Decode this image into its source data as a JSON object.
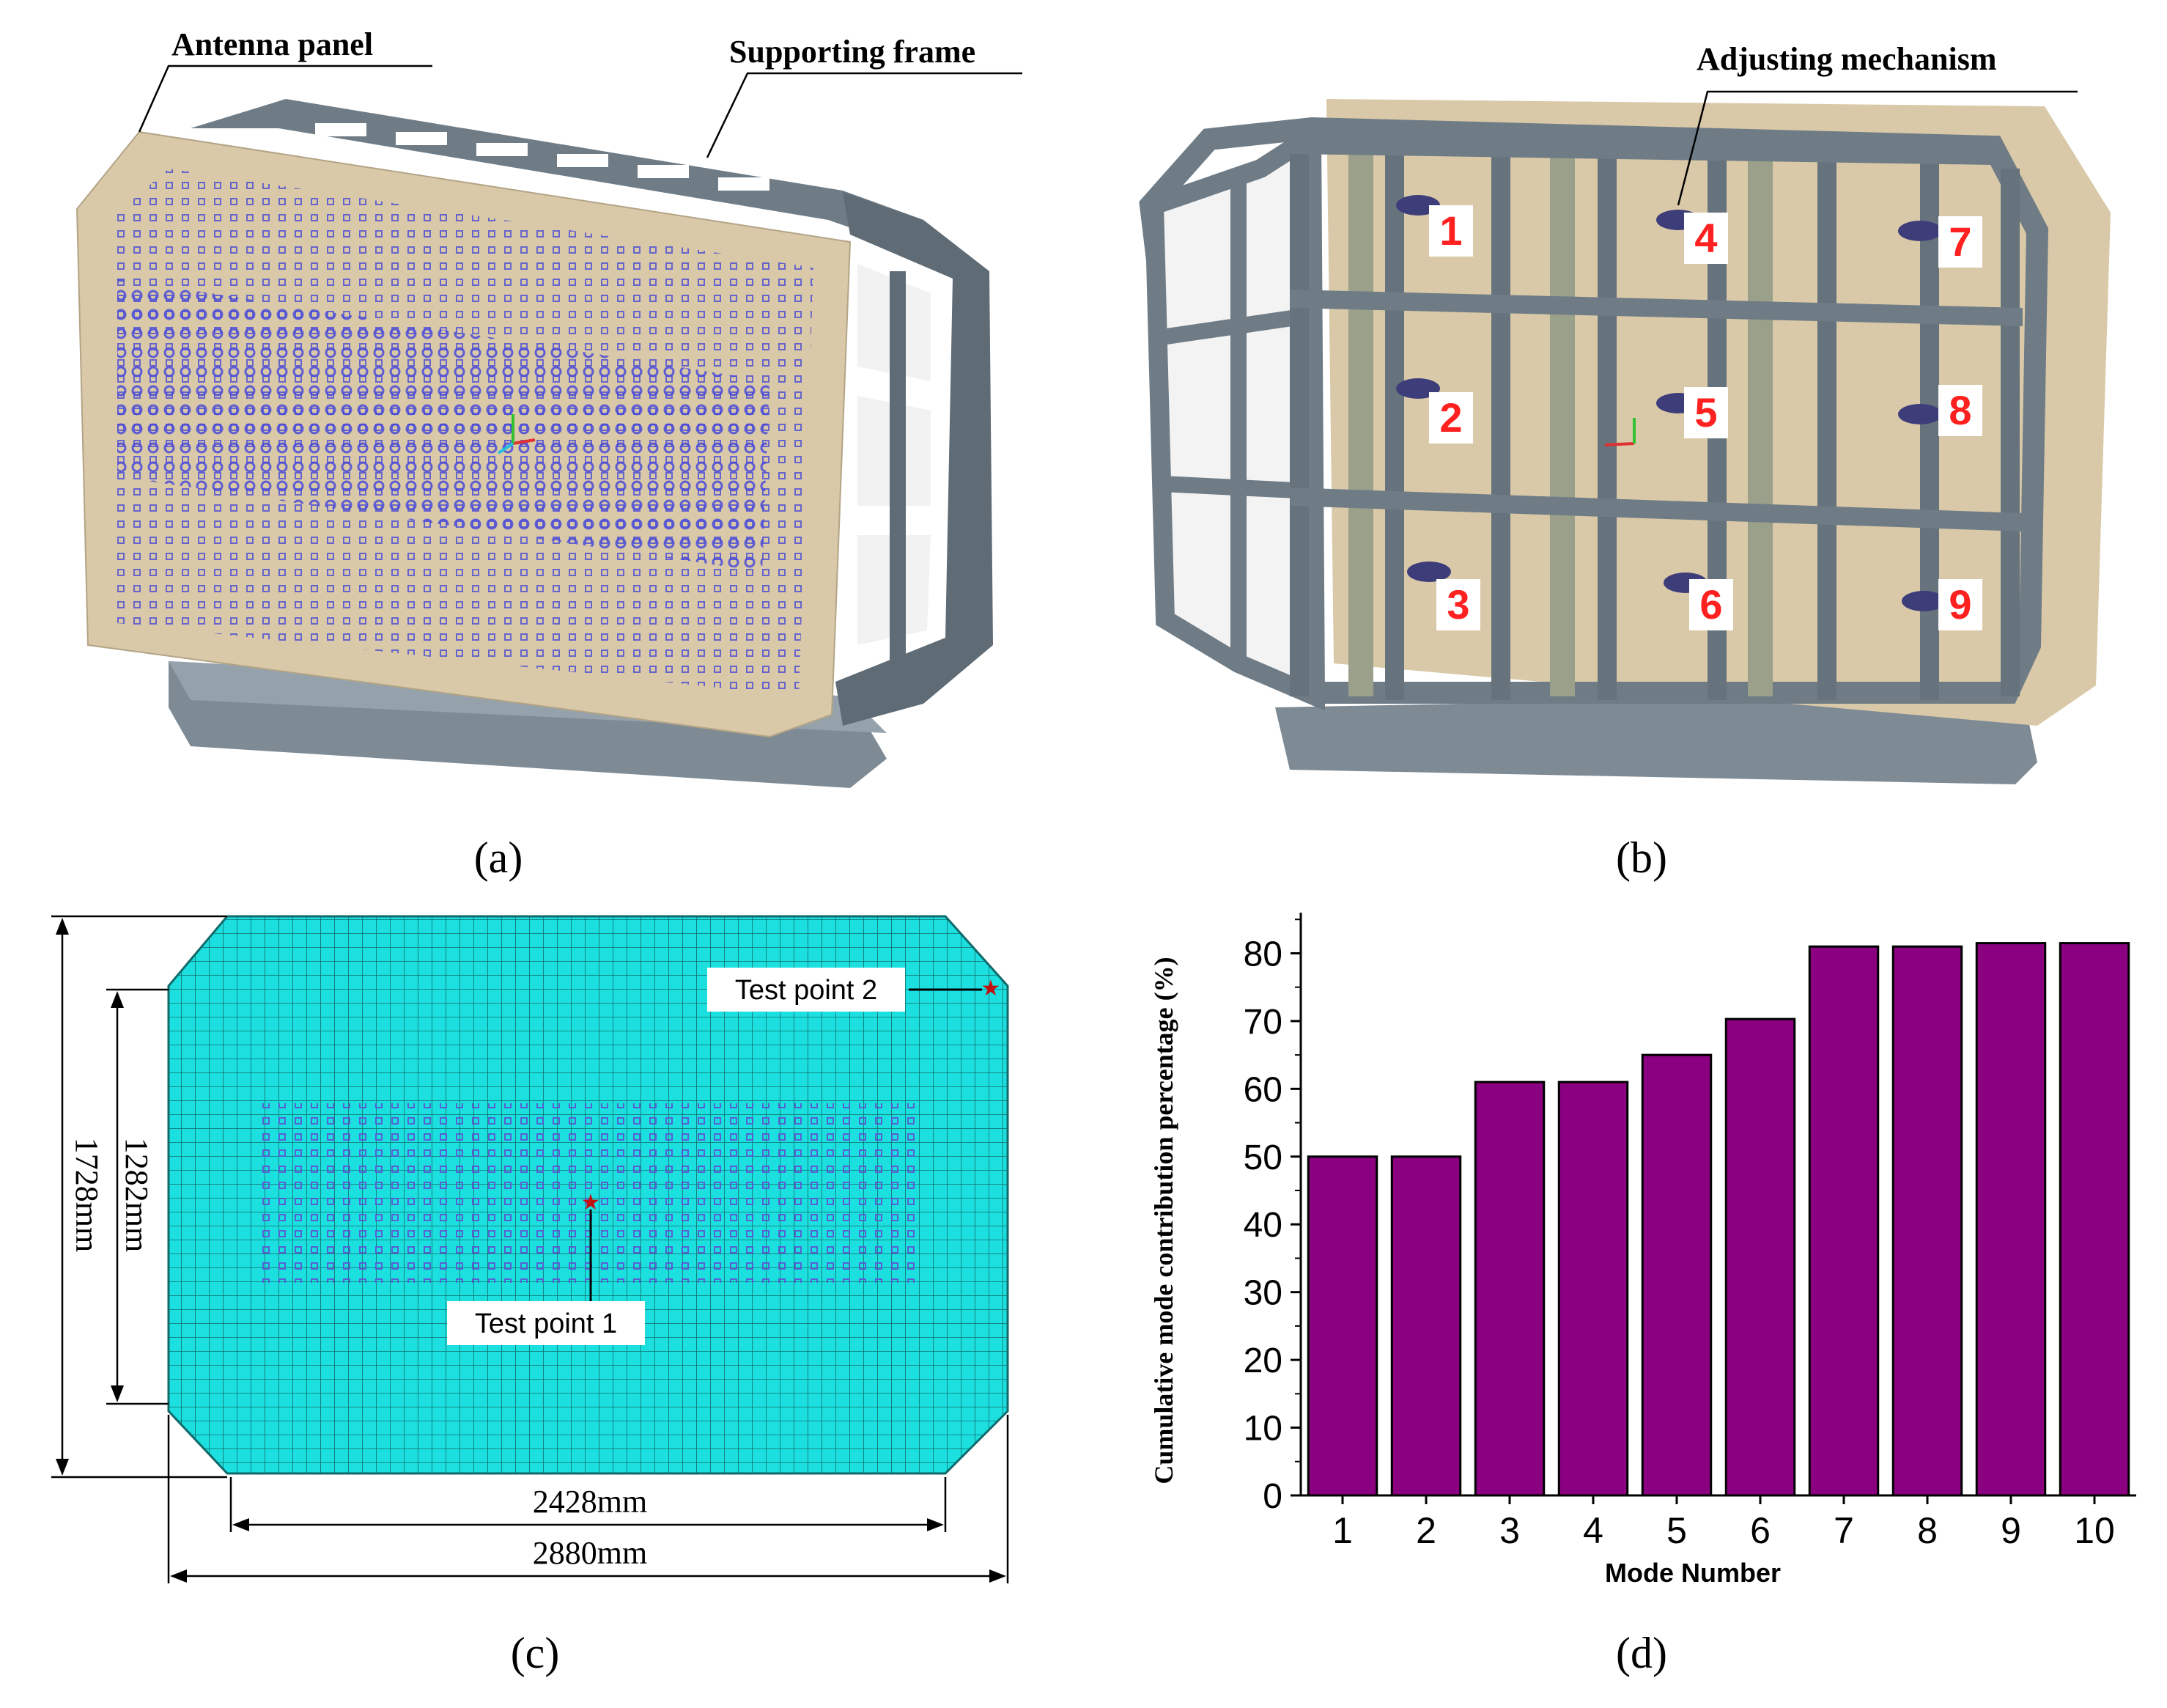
{
  "panel_a": {
    "label": "(a)",
    "callouts": {
      "antenna_panel": "Antenna panel",
      "supporting_frame": "Supporting frame"
    }
  },
  "panel_b": {
    "label": "(b)",
    "callouts": {
      "adjusting_mechanism": "Adjusting mechanism"
    },
    "mechanism_numbers": [
      "1",
      "2",
      "3",
      "4",
      "5",
      "6",
      "7",
      "8",
      "9"
    ]
  },
  "panel_c": {
    "label": "(c)",
    "dimensions": {
      "outer_height": "1728mm",
      "inner_height": "1282mm",
      "inner_width": "2428mm",
      "outer_width": "2880mm"
    },
    "test_points": {
      "point1": "Test point 1",
      "point2": "Test point 2"
    }
  },
  "panel_d": {
    "label": "(d)"
  },
  "colors": {
    "panel_tan": "#d9c9a8",
    "frame_gray": "#6f7c86",
    "mesh_cyan": "#1ce0e0",
    "bar_purple": "#8b0080",
    "number_red": "#ff2020"
  },
  "chart_data": {
    "type": "bar",
    "categories": [
      "1",
      "2",
      "3",
      "4",
      "5",
      "6",
      "7",
      "8",
      "9",
      "10"
    ],
    "values": [
      50.0,
      50.0,
      61.0,
      61.0,
      65.0,
      70.3,
      81.0,
      81.0,
      81.5,
      81.5
    ],
    "xlabel": "Mode Number",
    "ylabel": "Cumulative mode contribution percentage (%)",
    "ylim": [
      0,
      86
    ],
    "yticks": [
      0,
      10,
      20,
      30,
      40,
      50,
      60,
      70,
      80
    ],
    "grid": false,
    "legend": "none"
  }
}
